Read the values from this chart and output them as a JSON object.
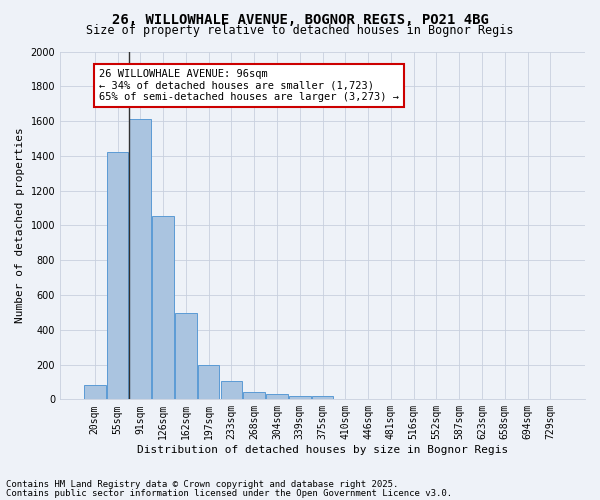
{
  "title1": "26, WILLOWHALE AVENUE, BOGNOR REGIS, PO21 4BG",
  "title2": "Size of property relative to detached houses in Bognor Regis",
  "xlabel": "Distribution of detached houses by size in Bognor Regis",
  "ylabel": "Number of detached properties",
  "categories": [
    "20sqm",
    "55sqm",
    "91sqm",
    "126sqm",
    "162sqm",
    "197sqm",
    "233sqm",
    "268sqm",
    "304sqm",
    "339sqm",
    "375sqm",
    "410sqm",
    "446sqm",
    "481sqm",
    "516sqm",
    "552sqm",
    "587sqm",
    "623sqm",
    "658sqm",
    "694sqm",
    "729sqm"
  ],
  "values": [
    80,
    1420,
    1610,
    1055,
    495,
    200,
    105,
    40,
    30,
    20,
    20,
    0,
    0,
    0,
    0,
    0,
    0,
    0,
    0,
    0,
    0
  ],
  "bar_color": "#aac4e0",
  "bar_edge_color": "#5b9bd5",
  "vline_index": 2,
  "vline_color": "#333333",
  "annotation_text": "26 WILLOWHALE AVENUE: 96sqm\n← 34% of detached houses are smaller (1,723)\n65% of semi-detached houses are larger (3,273) →",
  "annotation_box_color": "#ffffff",
  "annotation_box_edge": "#cc0000",
  "background_color": "#eef2f8",
  "grid_color": "#c8d0de",
  "ylim": [
    0,
    2000
  ],
  "yticks": [
    0,
    200,
    400,
    600,
    800,
    1000,
    1200,
    1400,
    1600,
    1800,
    2000
  ],
  "footer1": "Contains HM Land Registry data © Crown copyright and database right 2025.",
  "footer2": "Contains public sector information licensed under the Open Government Licence v3.0.",
  "title_fontsize": 10,
  "subtitle_fontsize": 8.5,
  "axis_label_fontsize": 8,
  "tick_fontsize": 7,
  "annotation_fontsize": 7.5,
  "footer_fontsize": 6.5
}
